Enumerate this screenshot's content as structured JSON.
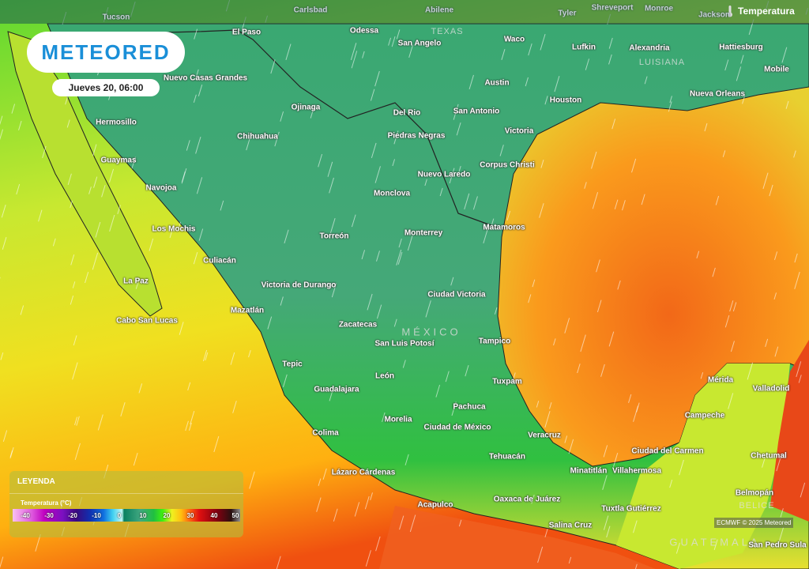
{
  "header": {
    "layer_label": "Temperatura",
    "layer_icon": "thermometer-icon"
  },
  "logo": {
    "text": "METEORED"
  },
  "date_label": "Jueves 20, 06:00",
  "legend": {
    "title": "LEYENDA",
    "subtitle": "Temperatura (°C)",
    "ticks": [
      "-40",
      "-30",
      "-20",
      "-10",
      "0",
      "10",
      "20",
      "30",
      "40",
      "50"
    ],
    "colors": [
      "#f8c0f0",
      "#c000c0",
      "#3a0a80",
      "#1070e0",
      "#c0f8f8",
      "#0a8060",
      "#20c040",
      "#f0f020",
      "#ff6010",
      "#800010",
      "#2a1010",
      "#909090"
    ]
  },
  "credit": "ECMWF © 2025 Meteored",
  "labels": {
    "us_muted": [
      "Tucson",
      "Carlsbad",
      "Abilene",
      "Tyler",
      "Shreveport",
      "Monroe",
      "Jackson"
    ],
    "regions": [
      "TEXAS",
      "LUISIANA",
      "MÉXICO",
      "BELICE",
      "GUATEMALA"
    ],
    "cities": [
      "El Paso",
      "Odessa",
      "San Angelo",
      "Waco",
      "Lufkin",
      "Alexandria",
      "Hattiesburg",
      "Mobile",
      "Nuevo Casas Grandes",
      "Ojinaga",
      "Austin",
      "Houston",
      "Nueva Orleans",
      "Hermosillo",
      "Chihuahua",
      "Del Rio",
      "San Antonio",
      "Victoria",
      "Piedras Negras",
      "Guaymas",
      "Corpus Christi",
      "Nuevo Laredo",
      "Navojoa",
      "Monclova",
      "Los Mochis",
      "Torreón",
      "Monterrey",
      "Matamoros",
      "Culiacán",
      "La Paz",
      "Victoria de Durango",
      "Ciudad Victoria",
      "Mazatlán",
      "Cabo San Lucas",
      "Zacatecas",
      "San Luis Potosí",
      "Tampico",
      "Tepic",
      "León",
      "Tuxpam",
      "Mérida",
      "Valladolid",
      "Guadalajara",
      "Pachuca",
      "Campeche",
      "Morelia",
      "Ciudad de México",
      "Veracruz",
      "Colima",
      "Tehuacán",
      "Ciudad del Carmen",
      "Chetumal",
      "Lázaro Cárdenas",
      "Minatitlán",
      "Villahermosa",
      "Acapulco",
      "Oaxaca de Juárez",
      "Tuxtla Gutiérrez",
      "Belmopán",
      "Salina Cruz",
      "San Pedro Sula"
    ]
  }
}
